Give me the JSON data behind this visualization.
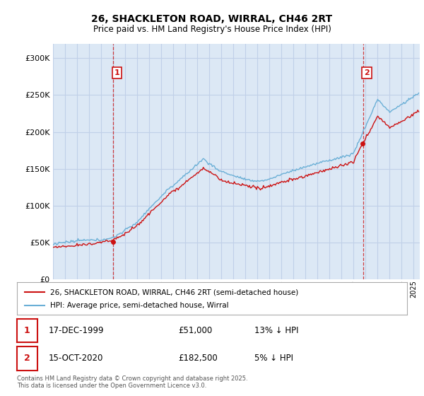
{
  "title_line1": "26, SHACKLETON ROAD, WIRRAL, CH46 2RT",
  "title_line2": "Price paid vs. HM Land Registry's House Price Index (HPI)",
  "legend_line1": "26, SHACKLETON ROAD, WIRRAL, CH46 2RT (semi-detached house)",
  "legend_line2": "HPI: Average price, semi-detached house, Wirral",
  "sale1_date": "17-DEC-1999",
  "sale1_price": 51000,
  "sale1_note": "13% ↓ HPI",
  "sale2_date": "15-OCT-2020",
  "sale2_price": 182500,
  "sale2_note": "5% ↓ HPI",
  "footer": "Contains HM Land Registry data © Crown copyright and database right 2025.\nThis data is licensed under the Open Government Licence v3.0.",
  "background_color": "#ffffff",
  "plot_bg_color": "#dce8f5",
  "hpi_color": "#6aafd6",
  "sale_color": "#cc1111",
  "marker_color": "#cc1111",
  "grid_color": "#c0d0e8",
  "ylim": [
    0,
    320000
  ],
  "yticks": [
    0,
    50000,
    100000,
    150000,
    200000,
    250000,
    300000
  ],
  "ytick_labels": [
    "£0",
    "£50K",
    "£100K",
    "£150K",
    "£200K",
    "£250K",
    "£300K"
  ],
  "sale1_x": 2000.0,
  "sale2_x": 2020.79
}
